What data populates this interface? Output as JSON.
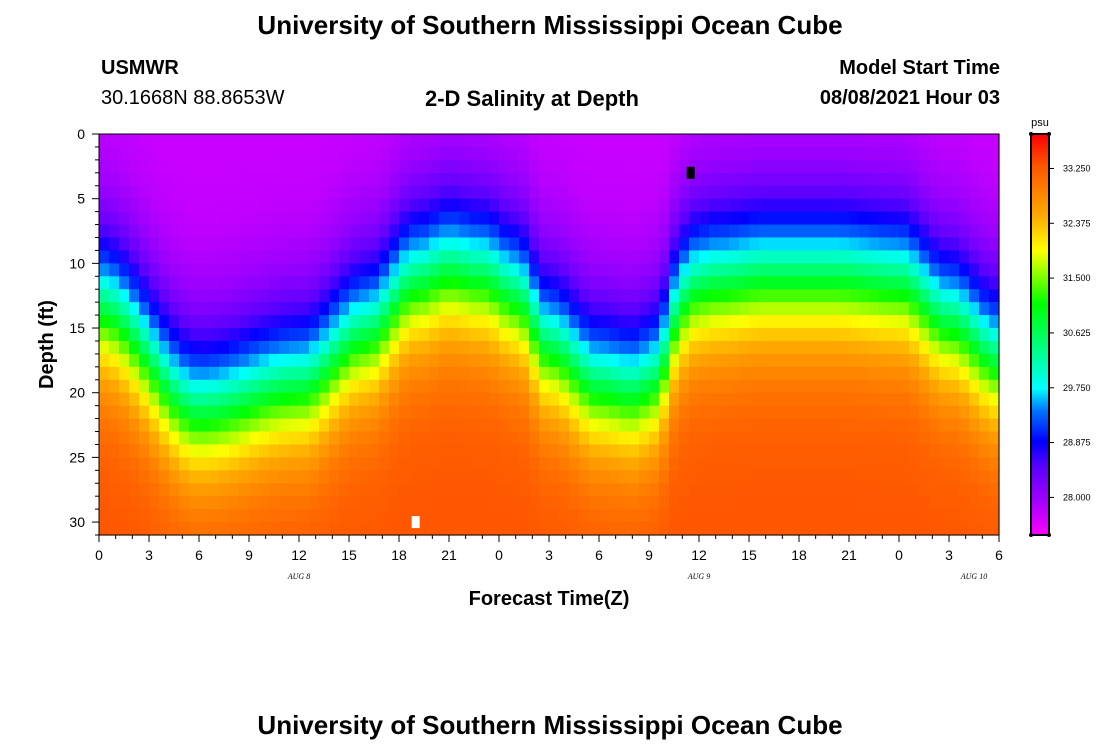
{
  "page": {
    "title_top": "University of Southern Mississippi Ocean Cube",
    "title_bottom": "University of Southern Mississippi Ocean Cube",
    "station_name": "USMWR",
    "station_coords": "30.1668N  88.8653W",
    "plot_title": "2-D Salinity at Depth",
    "model_start_label": "Model Start Time",
    "model_start_value": "08/08/2021 Hour 03"
  },
  "chart_data": {
    "type": "heatmap",
    "title": "2-D Salinity at Depth",
    "xlabel": "Forecast Time(Z)",
    "ylabel": "Depth (ft)",
    "x_start_hour": 0,
    "x_end_hour": 54,
    "x_ticks": [
      {
        "hour": 0,
        "label": "0"
      },
      {
        "hour": 3,
        "label": "3"
      },
      {
        "hour": 6,
        "label": "6"
      },
      {
        "hour": 9,
        "label": "9"
      },
      {
        "hour": 12,
        "label": "12"
      },
      {
        "hour": 15,
        "label": "15"
      },
      {
        "hour": 18,
        "label": "18"
      },
      {
        "hour": 21,
        "label": "21"
      },
      {
        "hour": 24,
        "label": "0"
      },
      {
        "hour": 27,
        "label": "3"
      },
      {
        "hour": 30,
        "label": "6"
      },
      {
        "hour": 33,
        "label": "9"
      },
      {
        "hour": 36,
        "label": "12"
      },
      {
        "hour": 39,
        "label": "15"
      },
      {
        "hour": 42,
        "label": "18"
      },
      {
        "hour": 45,
        "label": "21"
      },
      {
        "hour": 48,
        "label": "0"
      },
      {
        "hour": 51,
        "label": "3"
      },
      {
        "hour": 54,
        "label": "6"
      }
    ],
    "day_labels": [
      {
        "hour": 12,
        "label": "AUG 8"
      },
      {
        "hour": 36,
        "label": "AUG 9"
      },
      {
        "hour": 52.5,
        "label": "AUG 10"
      }
    ],
    "ylim": [
      0,
      31
    ],
    "y_ticks": [
      0,
      5,
      10,
      15,
      20,
      25,
      30
    ],
    "colorbar": {
      "unit": "psu",
      "min": 27.4,
      "max": 33.8,
      "tick_values": [
        28.0,
        28.875,
        29.75,
        30.625,
        31.5,
        32.375,
        33.25
      ],
      "tick_labels": [
        "28.000",
        "28.875",
        "29.750",
        "30.625",
        "31.500",
        "32.375",
        "33.250"
      ],
      "stops": [
        {
          "value": 27.4,
          "color": "#ff00ff"
        },
        {
          "value": 27.9,
          "color": "#aa00ff"
        },
        {
          "value": 28.5,
          "color": "#5a00ff"
        },
        {
          "value": 28.9,
          "color": "#0000ff"
        },
        {
          "value": 29.4,
          "color": "#0077ff"
        },
        {
          "value": 29.75,
          "color": "#00ffff"
        },
        {
          "value": 30.4,
          "color": "#00ff80"
        },
        {
          "value": 31.1,
          "color": "#00ff00"
        },
        {
          "value": 31.5,
          "color": "#77ff00"
        },
        {
          "value": 31.95,
          "color": "#ffff00"
        },
        {
          "value": 32.5,
          "color": "#ffaa00"
        },
        {
          "value": 33.3,
          "color": "#ff5500"
        },
        {
          "value": 33.8,
          "color": "#ff0000"
        }
      ]
    },
    "surface_salinity_psu": 27.7,
    "bottom_salinity_psu": 33.3,
    "halocline_depth_profile": {
      "hours": [
        0,
        6,
        12,
        16,
        19,
        21,
        23,
        25,
        27,
        30,
        32,
        33.5,
        34.5,
        35.5,
        37,
        40,
        44,
        48,
        51,
        54
      ],
      "depth_ft": [
        13,
        21,
        19,
        15,
        11,
        10,
        10.5,
        12,
        16,
        19,
        19.5,
        18.5,
        14,
        11.5,
        11,
        10.5,
        10.5,
        11,
        14,
        17
      ]
    },
    "markers": [
      {
        "kind": "min",
        "hour": 35.5,
        "depth_ft": 3,
        "color": "#000000"
      },
      {
        "kind": "max",
        "hour": 19,
        "depth_ft": 30,
        "color": "#ffffff"
      }
    ]
  }
}
